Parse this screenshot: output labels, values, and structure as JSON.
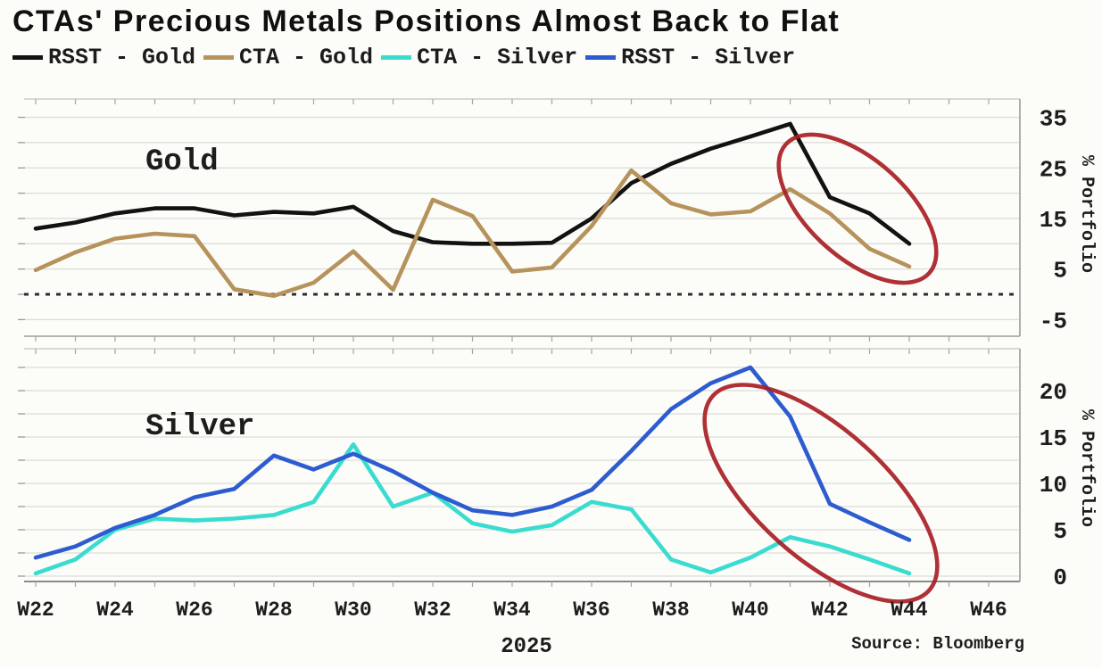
{
  "title": "CTAs' Precious Metals Positions Almost Back to Flat",
  "source": "Source: Bloomberg",
  "legend": [
    {
      "label": "RSST - Gold",
      "color": "#121212"
    },
    {
      "label": "CTA - Gold",
      "color": "#b6935c"
    },
    {
      "label": "CTA - Silver",
      "color": "#3adcd0"
    },
    {
      "label": "RSST - Silver",
      "color": "#2c5cd0"
    }
  ],
  "x_axis": {
    "tick_labels": [
      "W22",
      "W24",
      "W26",
      "W28",
      "W30",
      "W32",
      "W34",
      "W36",
      "W38",
      "W40",
      "W42",
      "W44",
      "W46"
    ],
    "year_label": "2025"
  },
  "annotation_color": "#a81e24",
  "chart_data": [
    {
      "type": "line",
      "panel": "Gold",
      "ylabel": "% Portfolio",
      "yticks": [
        35,
        25,
        15,
        5,
        -5
      ],
      "ylim": [
        -8,
        38
      ],
      "grid": "on",
      "gridline_step": 5,
      "zero_line": "dotted",
      "legend_position": "top",
      "x_weeks": [
        22,
        23,
        24,
        25,
        26,
        27,
        28,
        29,
        30,
        31,
        32,
        33,
        34,
        35,
        36,
        37,
        38,
        39,
        40,
        41,
        42,
        43,
        44
      ],
      "series": [
        {
          "name": "RSST - Gold",
          "color": "#121212",
          "values": [
            13,
            14.2,
            16,
            17,
            17,
            15.6,
            16.3,
            16,
            17.3,
            12.5,
            10.3,
            10,
            10,
            10.2,
            15,
            22,
            25.8,
            28.8,
            31.2,
            33.7,
            19.2,
            16,
            10
          ]
        },
        {
          "name": "CTA - Gold",
          "color": "#b6935c",
          "values": [
            4.8,
            8.3,
            11,
            12,
            11.5,
            1,
            -0.3,
            2.3,
            8.5,
            0.9,
            18.7,
            15.5,
            4.5,
            5.3,
            13.5,
            24.5,
            18,
            15.8,
            16.4,
            20.8,
            16,
            9,
            5.5
          ]
        }
      ],
      "annotation_ellipse": {
        "cx": 961,
        "cy": 234,
        "rx": 108,
        "ry": 55,
        "rotation": 42,
        "color": "#a81e24"
      }
    },
    {
      "type": "line",
      "panel": "Silver",
      "ylabel": "% Portfolio",
      "yticks": [
        20,
        15,
        10,
        5,
        0
      ],
      "ylim": [
        -0.5,
        24.5
      ],
      "grid": "on",
      "gridline_step": 2.5,
      "zero_line": "none",
      "legend_position": "top",
      "x_weeks": [
        22,
        23,
        24,
        25,
        26,
        27,
        28,
        29,
        30,
        31,
        32,
        33,
        34,
        35,
        36,
        37,
        38,
        39,
        40,
        41,
        42,
        43,
        44
      ],
      "series": [
        {
          "name": "CTA - Silver",
          "color": "#3adcd0",
          "values": [
            0.3,
            1.8,
            5,
            6.2,
            6,
            6.2,
            6.6,
            8,
            14.2,
            7.5,
            9,
            5.7,
            4.8,
            5.5,
            8,
            7.2,
            1.8,
            0.4,
            2,
            4.2,
            3.2,
            1.8,
            0.3
          ]
        },
        {
          "name": "RSST - Silver",
          "color": "#2c5cd0",
          "values": [
            2,
            3.2,
            5.2,
            6.6,
            8.5,
            9.4,
            13,
            11.5,
            13.2,
            11.3,
            9,
            7.1,
            6.6,
            7.5,
            9.3,
            13.5,
            18,
            20.8,
            22.5,
            17.2,
            7.8,
            5.8,
            3.9
          ]
        }
      ],
      "annotation_ellipse": {
        "cx": 920,
        "cy": 553,
        "rx": 163,
        "ry": 72,
        "rotation": 42,
        "color": "#a81e24"
      }
    }
  ]
}
